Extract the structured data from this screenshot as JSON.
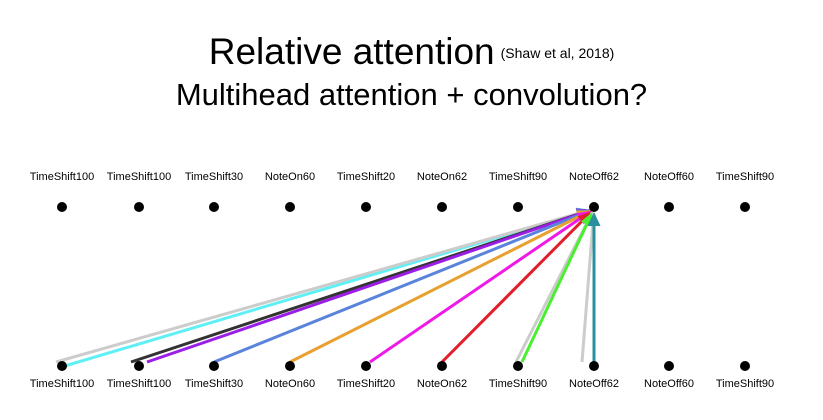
{
  "title": {
    "main": "Relative attention",
    "citation": "(Shaw et al, 2018)",
    "subtitle": "Multihead attention + convolution?"
  },
  "top_tokens": [
    "TimeShift100",
    "TimeShift100",
    "TimeShift30",
    "NoteOn60",
    "TimeShift20",
    "NoteOn62",
    "TimeShift90",
    "NoteOff62",
    "NoteOff60",
    "TimeShift90"
  ],
  "bottom_tokens": [
    "TimeShift100",
    "TimeShift100",
    "TimeShift30",
    "NoteOn60",
    "TimeShift20",
    "NoteOn62",
    "TimeShift90",
    "NoteOff62",
    "NoteOff60",
    "TimeShift90"
  ],
  "attention_target_index": 7,
  "edges": [
    {
      "from": 0,
      "color": "#5ef0f5",
      "style": "arrow"
    },
    {
      "from": 0,
      "color": "#cccccc",
      "style": "gray"
    },
    {
      "from": 1,
      "color": "#333333",
      "style": "arrow"
    },
    {
      "from": 1,
      "color": "#9b1de6",
      "style": "arrow"
    },
    {
      "from": 2,
      "color": "#5a83db",
      "style": "arrow"
    },
    {
      "from": 3,
      "color": "#e8a030",
      "style": "arrow"
    },
    {
      "from": 4,
      "color": "#f01ae8",
      "style": "arrow"
    },
    {
      "from": 5,
      "color": "#e01f2a",
      "style": "arrow"
    },
    {
      "from": 6,
      "color": "#cccccc",
      "style": "gray"
    },
    {
      "from": 6,
      "color": "#4af030",
      "style": "arrow"
    },
    {
      "from": 7,
      "color": "#cccccc",
      "style": "gray"
    },
    {
      "from": 7,
      "color": "#2a8f9e",
      "style": "arrow"
    }
  ]
}
